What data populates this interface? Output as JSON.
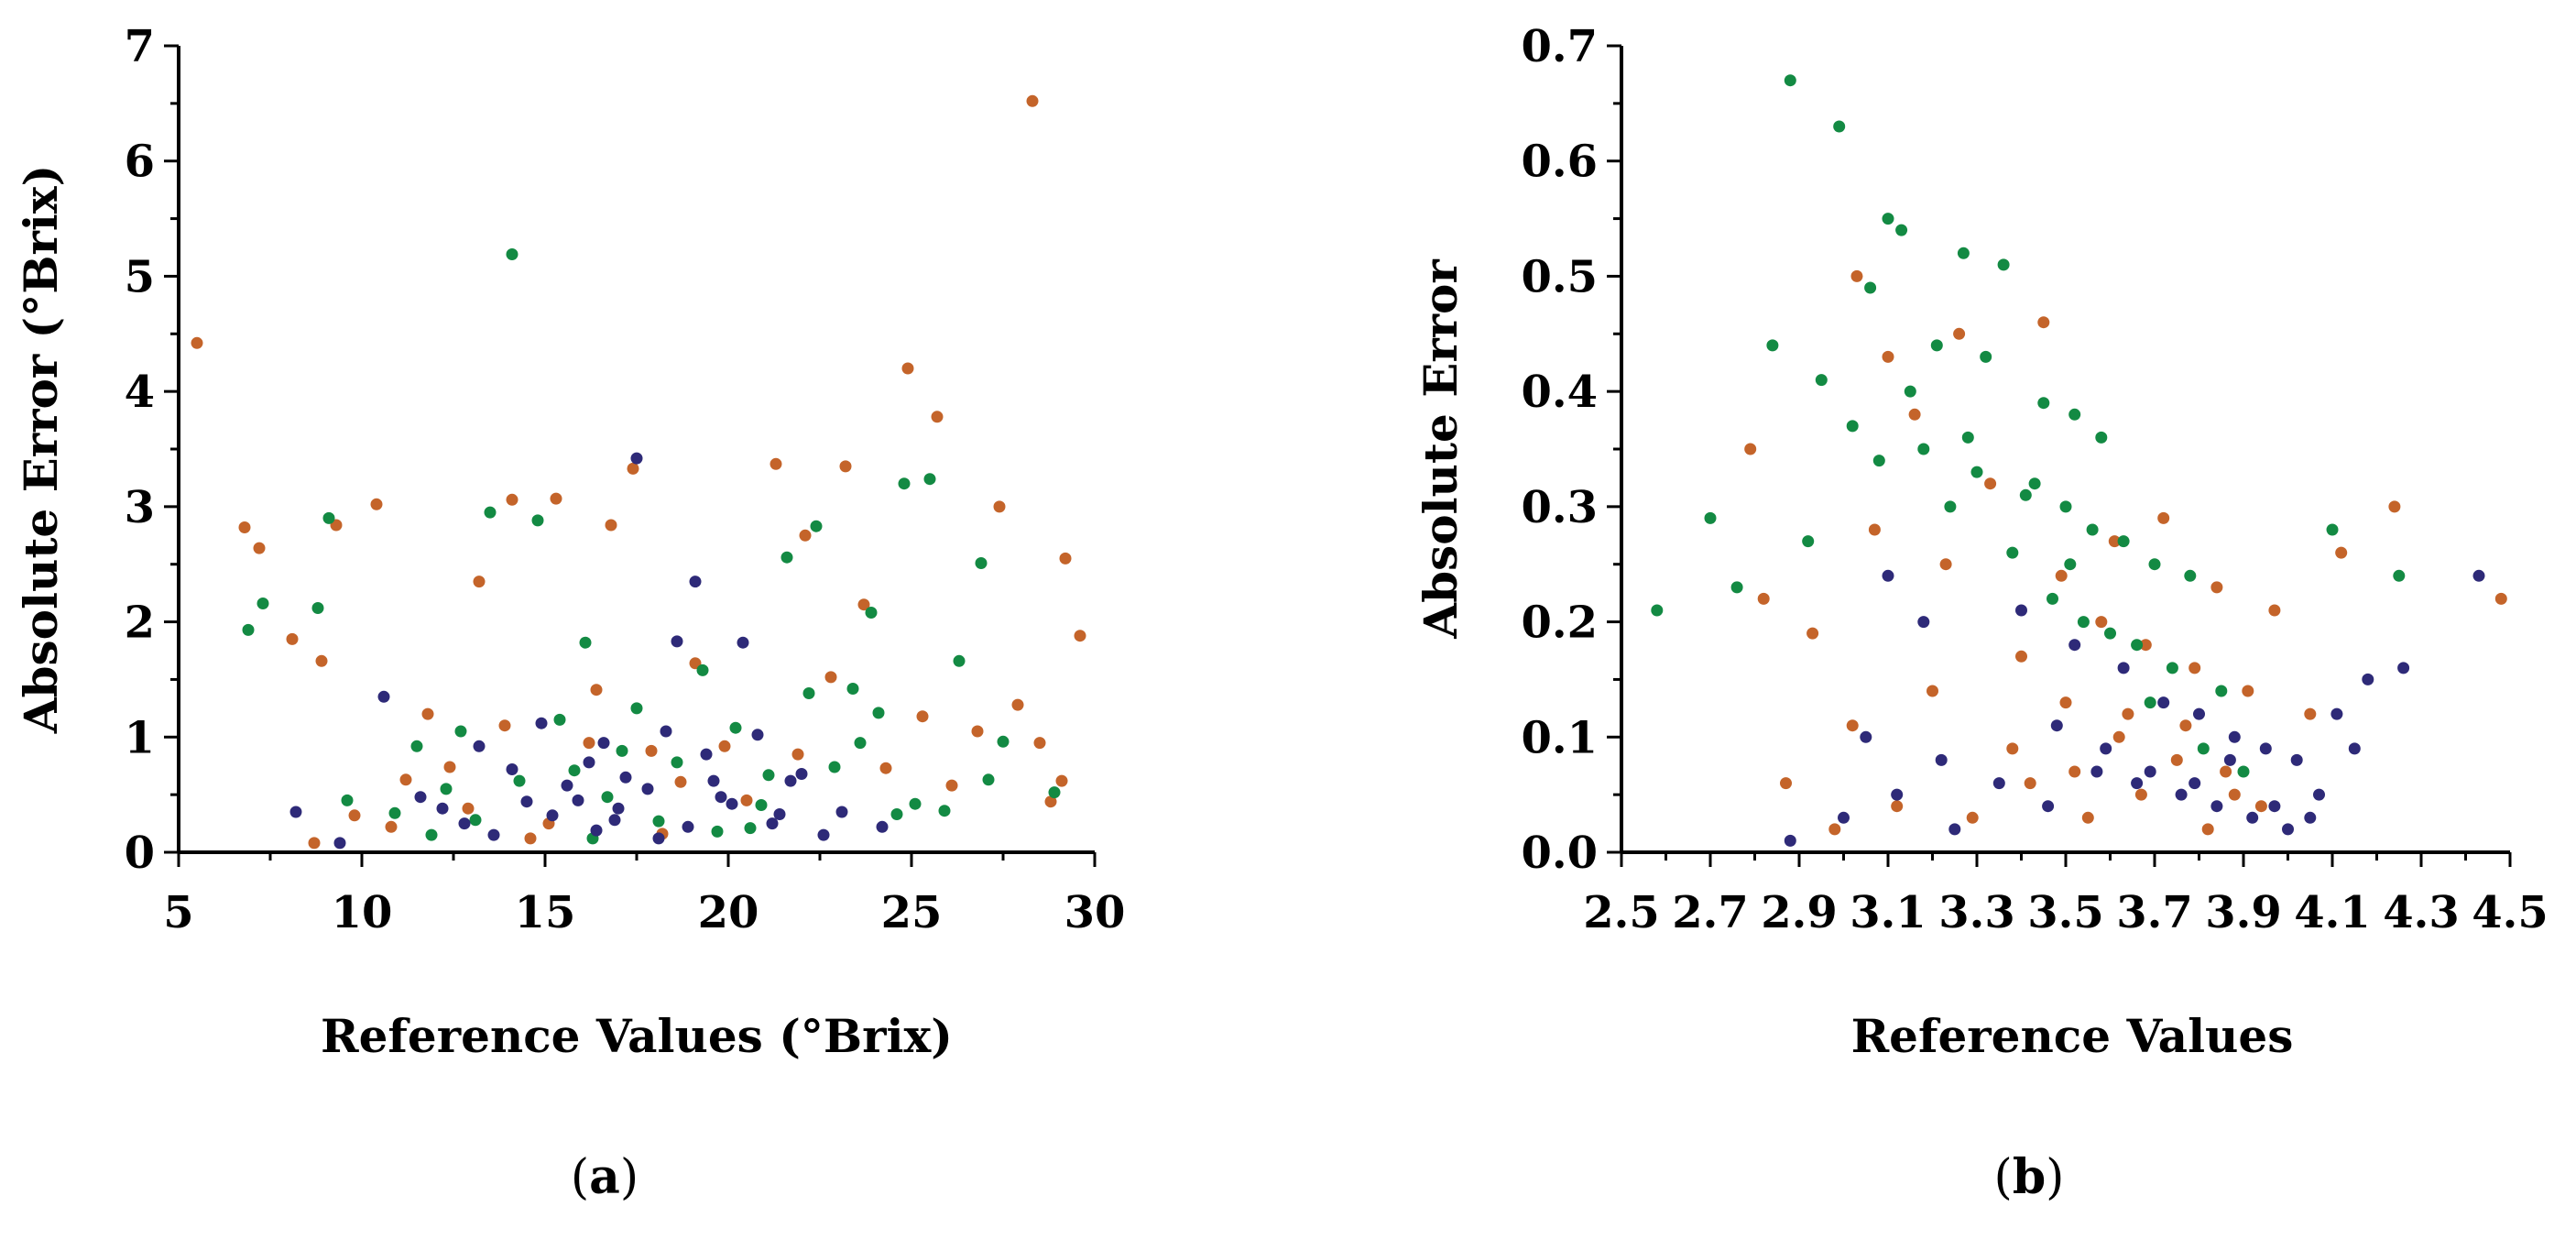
{
  "colors": {
    "orange": "#C4642A",
    "green": "#138A43",
    "navy": "#2E2A78",
    "axis": "#000000"
  },
  "chart_data": [
    {
      "type": "scatter",
      "panel": "a",
      "panel_label": "a",
      "xlabel": "Reference Values (°Brix)",
      "ylabel": "Absolute Error (°Brix)",
      "xlim": [
        5,
        30
      ],
      "ylim": [
        0,
        7
      ],
      "xticks": [
        5,
        10,
        15,
        20,
        25,
        30
      ],
      "xtick_labels": [
        "5",
        "10",
        "15",
        "20",
        "25",
        "30"
      ],
      "yticks": [
        0,
        1,
        2,
        3,
        4,
        5,
        6,
        7
      ],
      "ytick_labels": [
        "0",
        "1",
        "2",
        "3",
        "4",
        "5",
        "6",
        "7"
      ],
      "grid": false,
      "series": [
        {
          "name": "series-orange",
          "color": "#C4642A",
          "x": [
            5.5,
            6.8,
            7.2,
            8.1,
            8.9,
            9.3,
            10.4,
            11.8,
            13.2,
            14.1,
            15.3,
            16.8,
            17.4,
            21.3,
            24.9,
            25.7,
            27.4,
            28.3,
            29.2,
            23.2,
            22.1,
            12.4,
            13.9,
            16.2,
            18.7,
            19.9,
            26.8,
            29.6,
            20.5,
            9.8,
            11.2,
            15.1,
            17.9,
            22.8,
            24.3,
            27.9,
            28.8,
            26.1,
            23.7,
            14.6,
            12.9,
            10.8,
            19.1,
            21.9,
            25.3,
            29.1,
            18.2,
            16.4,
            8.7,
            28.5
          ],
          "y": [
            4.42,
            2.82,
            2.64,
            1.85,
            1.66,
            2.84,
            3.02,
            1.2,
            2.35,
            3.06,
            3.07,
            2.84,
            3.33,
            3.37,
            4.2,
            3.78,
            3.0,
            6.52,
            2.55,
            3.35,
            2.75,
            0.74,
            1.1,
            0.95,
            0.61,
            0.92,
            1.05,
            1.88,
            0.45,
            0.32,
            0.63,
            0.25,
            0.88,
            1.52,
            0.73,
            1.28,
            0.44,
            0.58,
            2.15,
            0.12,
            0.38,
            0.22,
            1.64,
            0.85,
            1.18,
            0.62,
            0.16,
            1.41,
            0.08,
            0.95
          ]
        },
        {
          "name": "series-green",
          "color": "#138A43",
          "x": [
            14.1,
            7.3,
            6.9,
            8.8,
            9.1,
            13.5,
            14.8,
            21.6,
            22.4,
            24.8,
            25.5,
            26.9,
            23.9,
            16.1,
            17.5,
            19.3,
            20.2,
            23.4,
            18.6,
            12.3,
            10.9,
            11.5,
            15.4,
            22.9,
            26.3,
            27.5,
            13.1,
            16.7,
            21.1,
            24.1,
            25.9,
            28.9,
            19.7,
            17.1,
            20.9,
            22.2,
            14.3,
            12.7,
            9.6,
            18.1,
            23.6,
            27.1,
            16.3,
            20.6,
            25.1,
            15.8,
            11.9,
            24.6
          ],
          "y": [
            5.19,
            2.16,
            1.93,
            2.12,
            2.9,
            2.95,
            2.88,
            2.56,
            2.83,
            3.2,
            3.24,
            2.51,
            2.08,
            1.82,
            1.25,
            1.58,
            1.08,
            1.42,
            0.78,
            0.55,
            0.34,
            0.92,
            1.15,
            0.74,
            1.66,
            0.96,
            0.28,
            0.48,
            0.67,
            1.21,
            0.36,
            0.52,
            0.18,
            0.88,
            0.41,
            1.38,
            0.62,
            1.05,
            0.45,
            0.27,
            0.95,
            0.63,
            0.12,
            0.21,
            0.42,
            0.71,
            0.15,
            0.33
          ]
        },
        {
          "name": "series-navy",
          "color": "#2E2A78",
          "x": [
            17.5,
            19.1,
            18.6,
            10.6,
            12.2,
            14.1,
            15.9,
            16.6,
            17.2,
            18.3,
            19.8,
            20.4,
            21.7,
            23.1,
            24.2,
            8.2,
            9.4,
            13.6,
            15.2,
            16.9,
            18.9,
            20.1,
            22.6,
            17.8,
            16.2,
            14.9,
            19.4,
            21.2,
            13.2,
            11.6,
            18.1,
            20.8,
            15.6,
            17.0,
            22.0,
            12.8,
            16.4,
            19.6,
            21.4,
            14.5
          ],
          "y": [
            3.42,
            2.35,
            1.83,
            1.35,
            0.38,
            0.72,
            0.45,
            0.95,
            0.65,
            1.05,
            0.48,
            1.82,
            0.62,
            0.35,
            0.22,
            0.35,
            0.08,
            0.15,
            0.32,
            0.28,
            0.22,
            0.42,
            0.15,
            0.55,
            0.78,
            1.12,
            0.85,
            0.25,
            0.92,
            0.48,
            0.12,
            1.02,
            0.58,
            0.38,
            0.68,
            0.25,
            0.19,
            0.62,
            0.33,
            0.44
          ]
        }
      ]
    },
    {
      "type": "scatter",
      "panel": "b",
      "panel_label": "b",
      "xlabel": "Reference Values",
      "ylabel": "Absolute Error",
      "xlim": [
        2.5,
        4.5
      ],
      "ylim": [
        0,
        0.7
      ],
      "xticks": [
        2.5,
        2.7,
        2.9,
        3.1,
        3.3,
        3.5,
        3.7,
        3.9,
        4.1,
        4.3,
        4.5
      ],
      "xtick_labels": [
        "2.5",
        "2.7",
        "2.9",
        "3.1",
        "3.3",
        "3.5",
        "3.7",
        "3.9",
        "4.1",
        "4.3",
        "4.5"
      ],
      "yticks": [
        0,
        0.1,
        0.2,
        0.3,
        0.4,
        0.5,
        0.6,
        0.7
      ],
      "ytick_labels": [
        "0.0",
        "0.1",
        "0.2",
        "0.3",
        "0.4",
        "0.5",
        "0.6",
        "0.7"
      ],
      "grid": false,
      "series": [
        {
          "name": "series-orange",
          "color": "#C4642A",
          "x": [
            2.79,
            3.03,
            3.1,
            3.26,
            3.45,
            3.61,
            3.72,
            3.84,
            3.97,
            4.24,
            4.48,
            2.93,
            3.16,
            3.33,
            3.49,
            3.58,
            3.68,
            3.79,
            3.91,
            4.05,
            2.87,
            3.02,
            3.2,
            3.38,
            3.52,
            3.64,
            3.75,
            3.88,
            2.98,
            3.12,
            3.29,
            3.42,
            3.55,
            3.67,
            3.82,
            3.94,
            4.12,
            2.82,
            3.07,
            3.23,
            3.4,
            3.5,
            3.62,
            3.77,
            3.86
          ],
          "y": [
            0.35,
            0.5,
            0.43,
            0.45,
            0.46,
            0.27,
            0.29,
            0.23,
            0.21,
            0.3,
            0.22,
            0.19,
            0.38,
            0.32,
            0.24,
            0.2,
            0.18,
            0.16,
            0.14,
            0.12,
            0.06,
            0.11,
            0.14,
            0.09,
            0.07,
            0.12,
            0.08,
            0.05,
            0.02,
            0.04,
            0.03,
            0.06,
            0.03,
            0.05,
            0.02,
            0.04,
            0.26,
            0.22,
            0.28,
            0.25,
            0.17,
            0.13,
            0.1,
            0.11,
            0.07
          ]
        },
        {
          "name": "series-green",
          "color": "#138A43",
          "x": [
            2.88,
            2.99,
            3.1,
            3.13,
            3.27,
            3.36,
            3.06,
            3.21,
            3.32,
            3.45,
            3.52,
            3.58,
            2.84,
            2.95,
            3.02,
            3.18,
            3.3,
            3.41,
            3.5,
            3.56,
            3.63,
            3.7,
            3.78,
            2.58,
            2.7,
            2.76,
            2.92,
            3.08,
            3.24,
            3.38,
            3.47,
            3.54,
            3.66,
            3.74,
            3.85,
            4.1,
            4.25,
            3.15,
            3.28,
            3.43,
            3.51,
            3.6,
            3.69,
            3.81,
            3.9
          ],
          "y": [
            0.67,
            0.63,
            0.55,
            0.54,
            0.52,
            0.51,
            0.49,
            0.44,
            0.43,
            0.39,
            0.38,
            0.36,
            0.44,
            0.41,
            0.37,
            0.35,
            0.33,
            0.31,
            0.3,
            0.28,
            0.27,
            0.25,
            0.24,
            0.21,
            0.29,
            0.23,
            0.27,
            0.34,
            0.3,
            0.26,
            0.22,
            0.2,
            0.18,
            0.16,
            0.14,
            0.28,
            0.24,
            0.4,
            0.36,
            0.32,
            0.25,
            0.19,
            0.13,
            0.09,
            0.07
          ]
        },
        {
          "name": "series-navy",
          "color": "#2E2A78",
          "x": [
            3.1,
            3.18,
            3.4,
            3.52,
            3.63,
            3.72,
            3.8,
            3.88,
            3.95,
            4.02,
            4.11,
            4.18,
            4.26,
            4.43,
            2.88,
            3.0,
            3.12,
            3.25,
            3.35,
            3.46,
            3.57,
            3.66,
            3.76,
            3.84,
            3.92,
            4.0,
            4.07,
            4.15,
            3.05,
            3.22,
            3.48,
            3.59,
            3.69,
            3.79,
            3.87,
            3.97,
            4.05
          ],
          "y": [
            0.24,
            0.2,
            0.21,
            0.18,
            0.16,
            0.13,
            0.12,
            0.1,
            0.09,
            0.08,
            0.12,
            0.15,
            0.16,
            0.24,
            0.01,
            0.03,
            0.05,
            0.02,
            0.06,
            0.04,
            0.07,
            0.06,
            0.05,
            0.04,
            0.03,
            0.02,
            0.05,
            0.09,
            0.1,
            0.08,
            0.11,
            0.09,
            0.07,
            0.06,
            0.08,
            0.04,
            0.03
          ]
        }
      ]
    }
  ]
}
